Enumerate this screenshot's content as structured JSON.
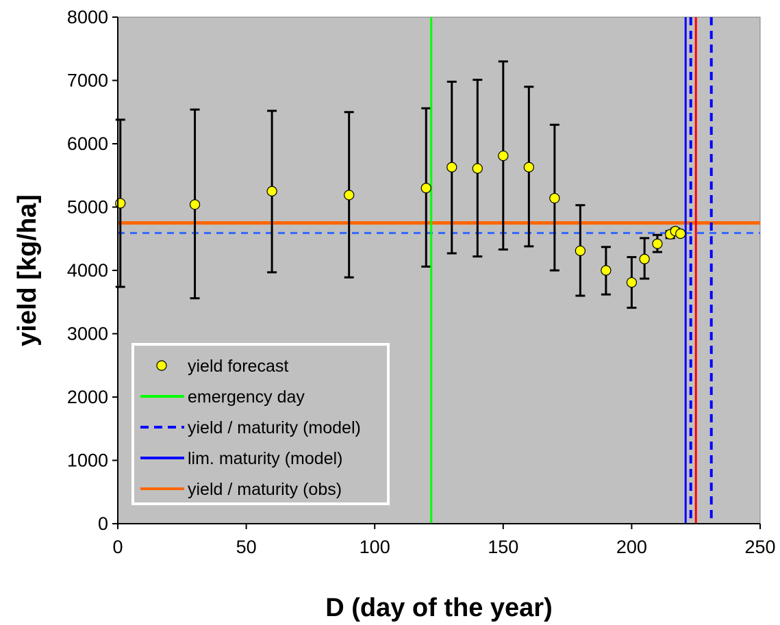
{
  "chart_data": {
    "type": "scatter",
    "xlabel": "D  (day of the year)",
    "ylabel": "yield  [kg/ha]",
    "xlim": [
      0,
      250
    ],
    "ylim": [
      0,
      8000
    ],
    "x_ticks": [
      0,
      50,
      100,
      150,
      200,
      250
    ],
    "y_ticks": [
      0,
      1000,
      2000,
      3000,
      4000,
      5000,
      6000,
      7000,
      8000
    ],
    "x_tick_labels": [
      "0",
      "50",
      "100",
      "150",
      "200",
      "250"
    ],
    "y_tick_labels": [
      "0",
      "1000",
      "2000",
      "3000",
      "4000",
      "5000",
      "6000",
      "7000",
      "8000"
    ],
    "grid": false,
    "plot_background": "#c0c0c0",
    "legend_position": "bottom-left",
    "forecast_series": {
      "name": "yield forecast",
      "color": "#ffff00",
      "points": [
        {
          "x": 1,
          "y": 5060,
          "low": 3740,
          "high": 6380
        },
        {
          "x": 30,
          "y": 5040,
          "low": 3560,
          "high": 6540
        },
        {
          "x": 60,
          "y": 5250,
          "low": 3970,
          "high": 6520
        },
        {
          "x": 90,
          "y": 5190,
          "low": 3890,
          "high": 6500
        },
        {
          "x": 120,
          "y": 5300,
          "low": 4060,
          "high": 6560
        },
        {
          "x": 130,
          "y": 5630,
          "low": 4270,
          "high": 6980
        },
        {
          "x": 140,
          "y": 5610,
          "low": 4220,
          "high": 7010
        },
        {
          "x": 150,
          "y": 5810,
          "low": 4330,
          "high": 7300
        },
        {
          "x": 160,
          "y": 5630,
          "low": 4380,
          "high": 6900
        },
        {
          "x": 170,
          "y": 5140,
          "low": 4000,
          "high": 6300
        },
        {
          "x": 180,
          "y": 4310,
          "low": 3600,
          "high": 5030
        },
        {
          "x": 190,
          "y": 4000,
          "low": 3620,
          "high": 4370
        },
        {
          "x": 200,
          "y": 3810,
          "low": 3410,
          "high": 4210
        },
        {
          "x": 205,
          "y": 4180,
          "low": 3870,
          "high": 4510
        },
        {
          "x": 210,
          "y": 4420,
          "low": 4290,
          "high": 4560
        },
        {
          "x": 215,
          "y": 4570,
          "low": 4510,
          "high": 4620
        },
        {
          "x": 217,
          "y": 4620,
          "low": 4580,
          "high": 4660
        },
        {
          "x": 219,
          "y": 4580,
          "low": 4560,
          "high": 4600
        }
      ]
    },
    "vertical_lines": [
      {
        "name": "emergency day",
        "x": 122,
        "color": "#00ff00",
        "dash": "solid"
      },
      {
        "name": "lim. maturity (model)",
        "x": 221,
        "color": "#0000ff",
        "dash": "solid"
      },
      {
        "name": "yield / maturity (model)",
        "x": 223,
        "color": "#0000ff",
        "dash": "dashed"
      },
      {
        "name": "",
        "x": 225,
        "color": "#ff0000",
        "dash": "solid"
      },
      {
        "name": "yield / maturity (model)",
        "x": 231,
        "color": "#0000ff",
        "dash": "dashed"
      }
    ],
    "horizontal_lines": [
      {
        "name": "yield / maturity (obs)",
        "y": 4750,
        "color": "#ff6600",
        "dash": "solid"
      },
      {
        "name": "yield / maturity (model)",
        "y": 4590,
        "color": "#3366ff",
        "dash": "dashed"
      }
    ],
    "legend": [
      {
        "label": "yield forecast",
        "kind": "marker",
        "color": "#ffff00"
      },
      {
        "label": "emergency day",
        "kind": "line",
        "color": "#00ff00",
        "dash": "solid"
      },
      {
        "label": "yield / maturity (model)",
        "kind": "line",
        "color": "#0000ff",
        "dash": "dashed"
      },
      {
        "label": "lim. maturity (model)",
        "kind": "line",
        "color": "#0000ff",
        "dash": "solid"
      },
      {
        "label": "yield / maturity (obs)",
        "kind": "line",
        "color": "#ff6600",
        "dash": "solid"
      }
    ]
  }
}
